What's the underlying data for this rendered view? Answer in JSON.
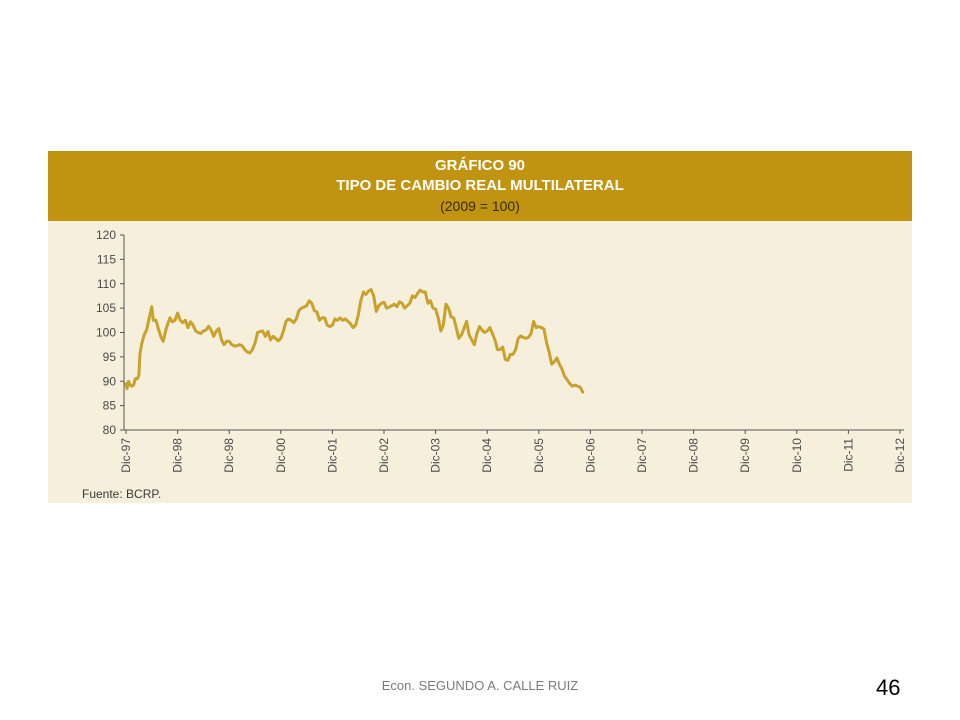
{
  "chart_data": {
    "type": "line",
    "title": "GRÁFICO 90",
    "subtitle": "TIPO DE CAMBIO REAL MULTILATERAL",
    "unit_note": "(2009 = 100)",
    "source": "Fuente: BCRP.",
    "xlabel": "",
    "ylabel": "",
    "ylim": [
      80,
      120
    ],
    "yticks": [
      80,
      85,
      90,
      95,
      100,
      105,
      110,
      115,
      120
    ],
    "categories": [
      "Dic-97",
      "Dic-98",
      "Dic-98",
      "Dic-00",
      "Dic-01",
      "Dic-02",
      "Dic-03",
      "Dic-04",
      "Dic-05",
      "Dic-06",
      "Dic-07",
      "Dic-08",
      "Dic-09",
      "Dic-10",
      "Dic-11",
      "Dic-12"
    ],
    "grid": false,
    "legend": "none",
    "line_color": "#c8a22c",
    "series": [
      {
        "name": "",
        "points": [
          [
            0.0,
            89.5
          ],
          [
            0.02,
            88.5
          ],
          [
            0.05,
            90.0
          ],
          [
            0.08,
            89.2
          ],
          [
            0.12,
            89.0
          ],
          [
            0.15,
            89.3
          ],
          [
            0.18,
            90.5
          ],
          [
            0.22,
            90.5
          ],
          [
            0.25,
            91.3
          ],
          [
            0.27,
            95.5
          ],
          [
            0.3,
            97.5
          ],
          [
            0.35,
            99.5
          ],
          [
            0.4,
            100.5
          ],
          [
            0.45,
            103.0
          ],
          [
            0.5,
            105.3
          ],
          [
            0.53,
            102.5
          ],
          [
            0.58,
            102.5
          ],
          [
            0.62,
            101.0
          ],
          [
            0.68,
            99.0
          ],
          [
            0.72,
            98.2
          ],
          [
            0.78,
            100.8
          ],
          [
            0.85,
            103.0
          ],
          [
            0.9,
            102.2
          ],
          [
            0.95,
            102.5
          ],
          [
            1.0,
            104.0
          ],
          [
            1.05,
            102.5
          ],
          [
            1.1,
            102.0
          ],
          [
            1.15,
            102.5
          ],
          [
            1.2,
            101.0
          ],
          [
            1.25,
            102.2
          ],
          [
            1.3,
            101.5
          ],
          [
            1.35,
            100.3
          ],
          [
            1.4,
            100.0
          ],
          [
            1.45,
            99.8
          ],
          [
            1.5,
            100.3
          ],
          [
            1.55,
            100.5
          ],
          [
            1.6,
            101.3
          ],
          [
            1.65,
            100.5
          ],
          [
            1.7,
            99.2
          ],
          [
            1.75,
            100.3
          ],
          [
            1.8,
            100.8
          ],
          [
            1.85,
            98.5
          ],
          [
            1.9,
            97.5
          ],
          [
            1.95,
            98.2
          ],
          [
            2.0,
            98.2
          ],
          [
            2.05,
            97.5
          ],
          [
            2.1,
            97.2
          ],
          [
            2.15,
            97.3
          ],
          [
            2.2,
            97.5
          ],
          [
            2.25,
            97.3
          ],
          [
            2.3,
            96.5
          ],
          [
            2.35,
            96.0
          ],
          [
            2.4,
            95.8
          ],
          [
            2.45,
            96.5
          ],
          [
            2.5,
            97.8
          ],
          [
            2.55,
            100.0
          ],
          [
            2.6,
            100.2
          ],
          [
            2.65,
            100.3
          ],
          [
            2.7,
            99.2
          ],
          [
            2.75,
            100.2
          ],
          [
            2.8,
            98.5
          ],
          [
            2.85,
            99.2
          ],
          [
            2.9,
            98.8
          ],
          [
            2.95,
            98.3
          ],
          [
            3.0,
            98.8
          ],
          [
            3.05,
            100.3
          ],
          [
            3.1,
            102.3
          ],
          [
            3.15,
            102.8
          ],
          [
            3.2,
            102.5
          ],
          [
            3.25,
            102.0
          ],
          [
            3.3,
            102.8
          ],
          [
            3.35,
            104.5
          ],
          [
            3.4,
            105.0
          ],
          [
            3.45,
            105.2
          ],
          [
            3.5,
            105.5
          ],
          [
            3.55,
            106.5
          ],
          [
            3.6,
            106.0
          ],
          [
            3.65,
            104.5
          ],
          [
            3.7,
            104.2
          ],
          [
            3.75,
            102.5
          ],
          [
            3.8,
            103.0
          ],
          [
            3.85,
            103.0
          ],
          [
            3.9,
            101.5
          ],
          [
            3.95,
            101.2
          ],
          [
            4.0,
            101.5
          ],
          [
            4.05,
            102.8
          ],
          [
            4.1,
            102.5
          ],
          [
            4.15,
            103.0
          ],
          [
            4.2,
            102.5
          ],
          [
            4.25,
            102.8
          ],
          [
            4.3,
            102.3
          ],
          [
            4.35,
            101.8
          ],
          [
            4.4,
            101.0
          ],
          [
            4.45,
            101.5
          ],
          [
            4.5,
            103.5
          ],
          [
            4.55,
            106.5
          ],
          [
            4.6,
            108.3
          ],
          [
            4.65,
            107.8
          ],
          [
            4.7,
            108.5
          ],
          [
            4.75,
            108.8
          ],
          [
            4.8,
            107.5
          ],
          [
            4.85,
            104.3
          ],
          [
            4.9,
            105.5
          ],
          [
            4.95,
            106.0
          ],
          [
            5.0,
            106.2
          ],
          [
            5.05,
            105.0
          ],
          [
            5.1,
            105.2
          ],
          [
            5.15,
            105.5
          ],
          [
            5.2,
            105.8
          ],
          [
            5.25,
            105.3
          ],
          [
            5.3,
            106.3
          ],
          [
            5.35,
            106.0
          ],
          [
            5.4,
            105.0
          ],
          [
            5.45,
            105.5
          ],
          [
            5.5,
            106.0
          ],
          [
            5.55,
            107.5
          ],
          [
            5.6,
            107.2
          ],
          [
            5.65,
            108.0
          ],
          [
            5.7,
            108.7
          ],
          [
            5.75,
            108.3
          ],
          [
            5.8,
            108.3
          ],
          [
            5.85,
            106.0
          ],
          [
            5.9,
            106.5
          ],
          [
            5.95,
            105.0
          ],
          [
            6.0,
            104.8
          ],
          [
            6.05,
            103.0
          ],
          [
            6.1,
            100.3
          ],
          [
            6.15,
            101.5
          ],
          [
            6.2,
            105.8
          ],
          [
            6.25,
            105.0
          ],
          [
            6.3,
            103.2
          ],
          [
            6.35,
            103.0
          ],
          [
            6.4,
            101.0
          ],
          [
            6.45,
            98.8
          ],
          [
            6.5,
            99.5
          ],
          [
            6.55,
            100.8
          ],
          [
            6.6,
            102.3
          ],
          [
            6.65,
            99.5
          ],
          [
            6.7,
            98.5
          ],
          [
            6.75,
            97.5
          ],
          [
            6.8,
            99.8
          ],
          [
            6.85,
            101.2
          ],
          [
            6.9,
            100.5
          ],
          [
            6.95,
            100.0
          ],
          [
            7.0,
            100.3
          ],
          [
            7.05,
            101.0
          ],
          [
            7.1,
            99.8
          ],
          [
            7.15,
            98.5
          ],
          [
            7.2,
            96.5
          ],
          [
            7.25,
            96.5
          ],
          [
            7.3,
            97.0
          ],
          [
            7.35,
            94.5
          ],
          [
            7.4,
            94.3
          ],
          [
            7.45,
            95.5
          ],
          [
            7.5,
            95.5
          ],
          [
            7.55,
            96.5
          ],
          [
            7.6,
            98.8
          ],
          [
            7.65,
            99.3
          ],
          [
            7.7,
            99.0
          ],
          [
            7.75,
            98.8
          ],
          [
            7.8,
            99.0
          ],
          [
            7.85,
            99.8
          ],
          [
            7.9,
            102.3
          ],
          [
            7.95,
            101.0
          ],
          [
            8.0,
            101.2
          ],
          [
            8.05,
            101.0
          ],
          [
            8.1,
            100.7
          ],
          [
            8.15,
            98.0
          ],
          [
            8.2,
            96.0
          ],
          [
            8.25,
            93.5
          ],
          [
            8.3,
            94.0
          ],
          [
            8.35,
            94.8
          ],
          [
            8.4,
            93.5
          ],
          [
            8.45,
            92.5
          ],
          [
            8.5,
            91.0
          ],
          [
            8.55,
            90.3
          ],
          [
            8.6,
            89.5
          ],
          [
            8.65,
            89.0
          ],
          [
            8.7,
            89.2
          ],
          [
            8.75,
            89.0
          ],
          [
            8.8,
            88.8
          ],
          [
            8.85,
            87.8
          ]
        ]
      }
    ]
  },
  "footer": {
    "author": "Econ. SEGUNDO A. CALLE RUIZ",
    "page_number": "46"
  }
}
